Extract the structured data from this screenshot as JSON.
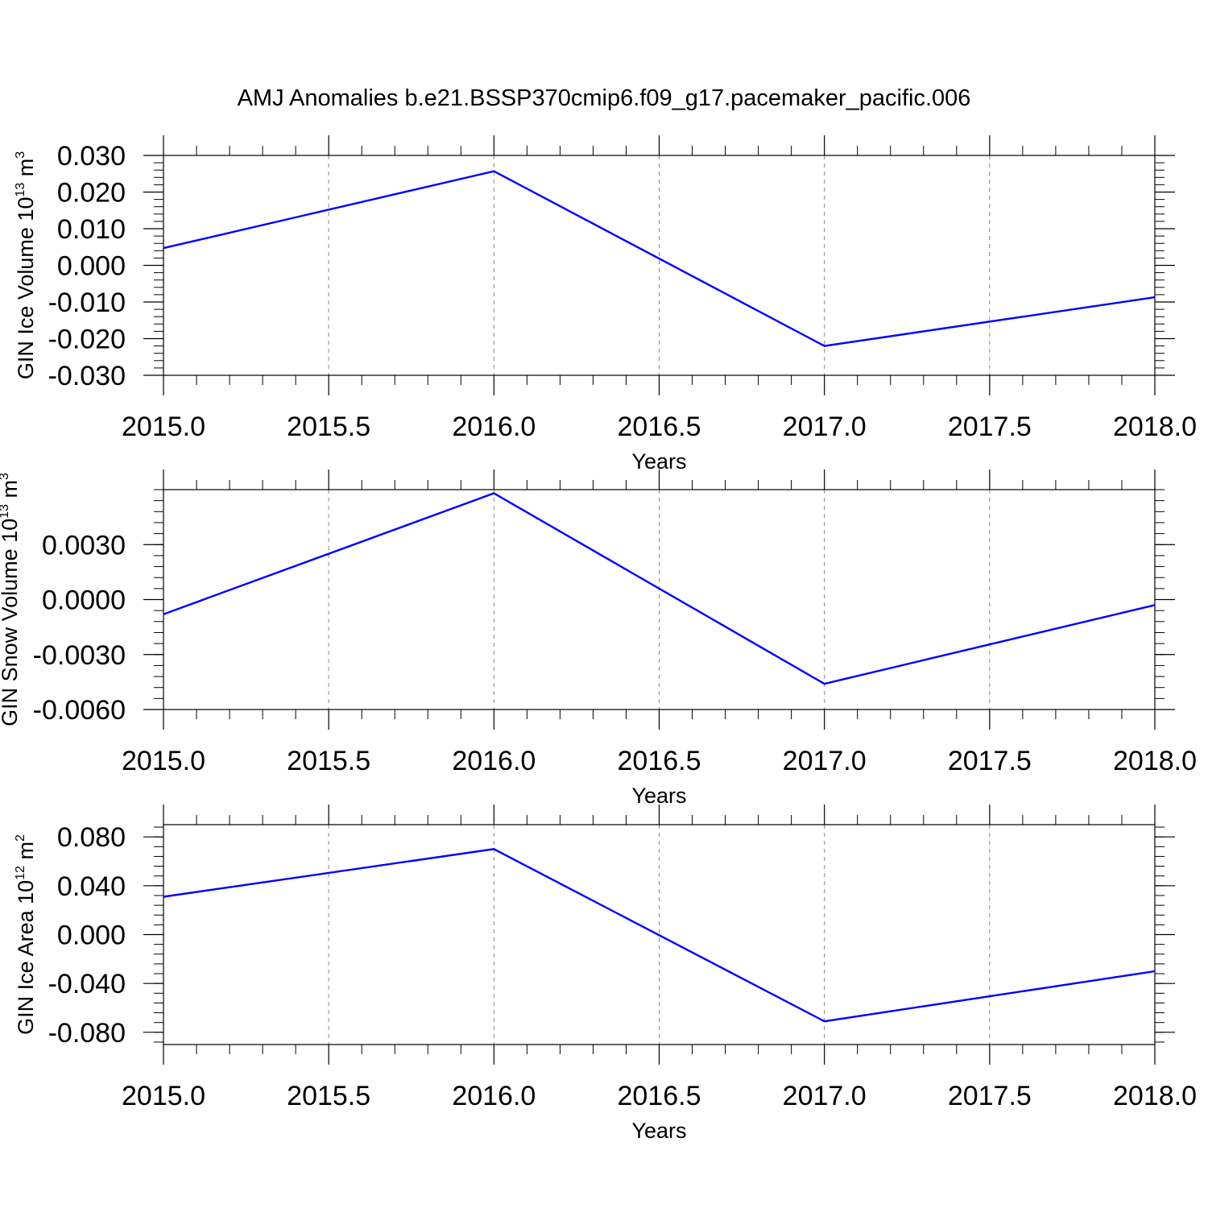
{
  "figure": {
    "title": "AMJ Anomalies b.e21.BSSP370cmip6.f09_g17.pacemaker_pacific.006"
  },
  "colors": {
    "series": "#0000ff",
    "axis": "#000000",
    "grid": "#888888"
  },
  "chart_data": [
    {
      "type": "line",
      "xlabel": "Years",
      "ylabel": {
        "text": "GIN Ice Volume 10",
        "sup": "13",
        "unit": " m",
        "unit_sup": "3"
      },
      "xlim": [
        2015.0,
        2018.0
      ],
      "ylim": [
        -0.03,
        0.03
      ],
      "x_ticks": [
        "2015.0",
        "2015.5",
        "2016.0",
        "2016.5",
        "2017.0",
        "2017.5",
        "2018.0"
      ],
      "y_ticks": [
        "0.030",
        "0.020",
        "0.010",
        "0.000",
        "-0.010",
        "-0.020",
        "-0.030"
      ],
      "grid": "vertical dashed",
      "x": [
        2015,
        2016,
        2017,
        2018
      ],
      "series": [
        {
          "values": [
            0.0047,
            0.0257,
            -0.022,
            -0.0087
          ]
        }
      ]
    },
    {
      "type": "line",
      "xlabel": "Years",
      "ylabel": {
        "text": "GIN Snow Volume 10",
        "sup": "13",
        "unit": " m",
        "unit_sup": "3"
      },
      "xlim": [
        2015.0,
        2018.0
      ],
      "ylim": [
        -0.006,
        0.006
      ],
      "x_ticks": [
        "2015.0",
        "2015.5",
        "2016.0",
        "2016.5",
        "2017.0",
        "2017.5",
        "2018.0"
      ],
      "y_ticks": [
        "0.0030",
        "0.0000",
        "-0.0030",
        "-0.0060"
      ],
      "grid": "vertical dashed",
      "x": [
        2015,
        2016,
        2017,
        2018
      ],
      "series": [
        {
          "values": [
            -0.0008,
            0.0058,
            -0.0046,
            -0.0003
          ]
        }
      ]
    },
    {
      "type": "line",
      "xlabel": "Years",
      "ylabel": {
        "text": "GIN Ice Area 10",
        "sup": "12",
        "unit": " m",
        "unit_sup": "2"
      },
      "xlim": [
        2015.0,
        2018.0
      ],
      "ylim": [
        -0.09,
        0.09
      ],
      "x_ticks": [
        "2015.0",
        "2015.5",
        "2016.0",
        "2016.5",
        "2017.0",
        "2017.5",
        "2018.0"
      ],
      "y_ticks": [
        "0.080",
        "0.040",
        "0.000",
        "-0.040",
        "-0.080"
      ],
      "grid": "vertical dashed",
      "x": [
        2015,
        2016,
        2017,
        2018
      ],
      "series": [
        {
          "values": [
            0.031,
            0.07,
            -0.071,
            -0.03
          ]
        }
      ]
    }
  ]
}
